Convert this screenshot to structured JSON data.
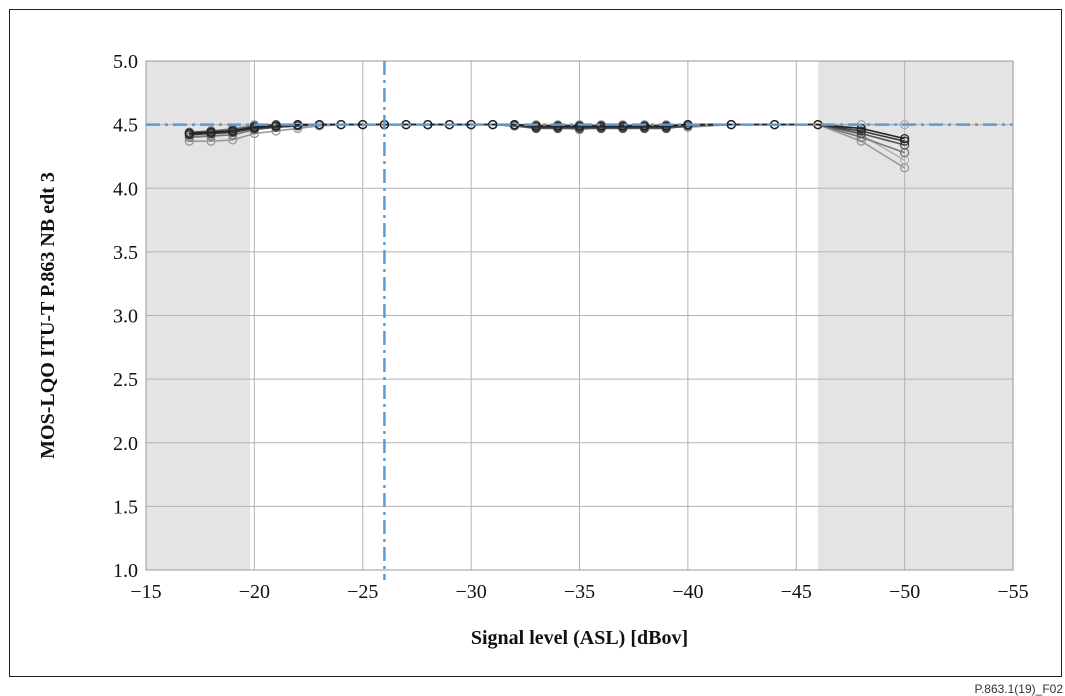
{
  "figure_ref": "P.863.1(19)_F02",
  "chart_data": {
    "type": "line",
    "xlabel": "Signal level (ASL) [dBov]",
    "ylabel": "MOS-LQO ITU-T P.863 NB edt 3",
    "xlim": [
      -15,
      -55
    ],
    "ylim": [
      1.0,
      5.0
    ],
    "x_direction": "decreasing",
    "xticks": [
      -15,
      -20,
      -25,
      -30,
      -35,
      -40,
      -45,
      -50,
      -55
    ],
    "xtick_labels": [
      "−15",
      "−20",
      "−25",
      "−30",
      "−35",
      "−40",
      "−45",
      "−50",
      "−55"
    ],
    "yticks": [
      1.0,
      1.5,
      2.0,
      2.5,
      3.0,
      3.5,
      4.0,
      4.5,
      5.0
    ],
    "ytick_labels": [
      "1.0",
      "1.5",
      "2.0",
      "2.5",
      "3.0",
      "3.5",
      "4.0",
      "4.5",
      "5.0"
    ],
    "grid": true,
    "legend": "none",
    "shaded_regions": [
      {
        "x_from": -15,
        "x_to": -19.8,
        "color": "#e4e4e4"
      },
      {
        "x_from": -46,
        "x_to": -55,
        "color": "#e4e4e4"
      }
    ],
    "reference_lines": [
      {
        "orientation": "horizontal",
        "value": 4.5,
        "style": "dash-dot",
        "color": "#5b9bd5"
      },
      {
        "orientation": "vertical",
        "value": -26,
        "style": "dash-dot",
        "color": "#5b9bd5"
      }
    ],
    "x": [
      -17,
      -18,
      -19,
      -20,
      -21,
      -22,
      -23,
      -24,
      -25,
      -26,
      -27,
      -28,
      -29,
      -30,
      -31,
      -32,
      -33,
      -34,
      -35,
      -36,
      -37,
      -38,
      -39,
      -40,
      -42,
      -44,
      -46,
      -48,
      -50
    ],
    "series": [
      {
        "color": "#222222",
        "values": [
          4.43,
          4.44,
          4.45,
          4.48,
          4.49,
          4.5,
          4.5,
          4.5,
          4.5,
          4.5,
          4.5,
          4.5,
          4.5,
          4.5,
          4.5,
          4.5,
          4.49,
          4.49,
          4.49,
          4.49,
          4.49,
          4.49,
          4.49,
          4.5,
          4.5,
          4.5,
          4.5,
          4.47,
          4.39
        ]
      },
      {
        "color": "#3a3a3a",
        "values": [
          4.42,
          4.43,
          4.44,
          4.47,
          4.48,
          4.49,
          4.5,
          4.5,
          4.5,
          4.5,
          4.5,
          4.5,
          4.5,
          4.5,
          4.5,
          4.5,
          4.48,
          4.48,
          4.48,
          4.48,
          4.48,
          4.48,
          4.48,
          4.5,
          4.5,
          4.5,
          4.5,
          4.45,
          4.37
        ]
      },
      {
        "color": "#555555",
        "values": [
          4.44,
          4.45,
          4.46,
          4.49,
          4.5,
          4.5,
          4.5,
          4.5,
          4.5,
          4.5,
          4.5,
          4.5,
          4.5,
          4.5,
          4.5,
          4.49,
          4.47,
          4.47,
          4.47,
          4.47,
          4.47,
          4.47,
          4.47,
          4.49,
          4.5,
          4.5,
          4.5,
          4.43,
          4.34
        ]
      },
      {
        "color": "#777777",
        "values": [
          4.4,
          4.41,
          4.42,
          4.46,
          4.48,
          4.49,
          4.5,
          4.5,
          4.5,
          4.5,
          4.5,
          4.5,
          4.5,
          4.5,
          4.5,
          4.49,
          4.49,
          4.49,
          4.49,
          4.49,
          4.49,
          4.49,
          4.49,
          4.5,
          4.5,
          4.5,
          4.5,
          4.4,
          4.28
        ]
      },
      {
        "color": "#999999",
        "values": [
          4.37,
          4.37,
          4.38,
          4.43,
          4.45,
          4.47,
          4.49,
          4.5,
          4.5,
          4.5,
          4.5,
          4.5,
          4.5,
          4.5,
          4.5,
          4.49,
          4.48,
          4.48,
          4.46,
          4.48,
          4.48,
          4.48,
          4.48,
          4.48,
          4.5,
          4.5,
          4.5,
          4.37,
          4.16
        ]
      },
      {
        "color": "#aaaaaa",
        "values": [
          4.44,
          4.45,
          4.47,
          4.5,
          4.5,
          4.5,
          4.5,
          4.5,
          4.5,
          4.5,
          4.5,
          4.5,
          4.5,
          4.5,
          4.5,
          4.5,
          4.5,
          4.5,
          4.5,
          4.5,
          4.5,
          4.5,
          4.5,
          4.5,
          4.5,
          4.5,
          4.5,
          4.5,
          4.5
        ]
      },
      {
        "color": "#b5b5b5",
        "values": [
          4.41,
          4.42,
          4.44,
          4.47,
          4.49,
          4.5,
          4.5,
          4.5,
          4.5,
          4.5,
          4.5,
          4.5,
          4.5,
          4.5,
          4.5,
          4.5,
          4.49,
          4.49,
          4.49,
          4.49,
          4.49,
          4.49,
          4.49,
          4.5,
          4.5,
          4.5,
          4.5,
          4.42,
          4.22
        ]
      }
    ]
  }
}
